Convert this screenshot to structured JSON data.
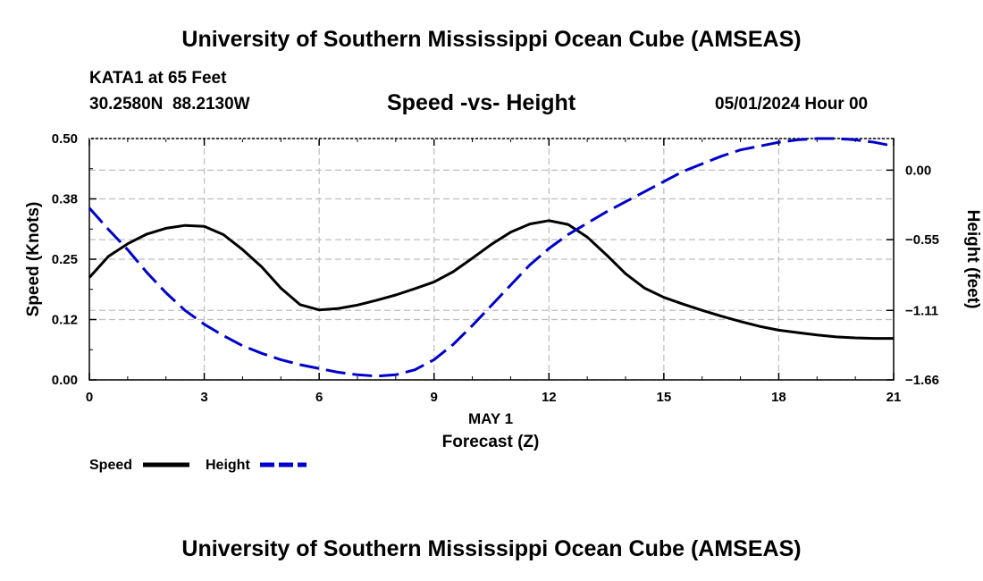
{
  "header": {
    "top_title": "University of Southern Mississippi Ocean Cube (AMSEAS)",
    "station": "KATA1 at 65 Feet",
    "coords": "30.2580N  88.2130W",
    "subtitle": "Speed -vs- Height",
    "datetime": "05/01/2024 Hour 00",
    "bottom_title": "University of Southern Mississippi Ocean Cube (AMSEAS)"
  },
  "chart_data": {
    "type": "line",
    "title": "Speed -vs- Height",
    "xlabel": "Forecast (Z)",
    "xlabel_date": "MAY 1",
    "ylabel_left": "Speed (Knots)",
    "ylabel_right": "Height (feet)",
    "xlim": [
      0,
      21
    ],
    "x_ticks": [
      0,
      3,
      6,
      9,
      12,
      15,
      18,
      21
    ],
    "x_tick_labels": [
      "0",
      "3",
      "6",
      "9",
      "12",
      "15",
      "18",
      "21"
    ],
    "ylim_left": [
      0,
      0.5
    ],
    "y_left_ticks": [
      0,
      0.125,
      0.25,
      0.375,
      0.5
    ],
    "y_left_tick_labels": [
      "0.00",
      "0.12",
      "0.25",
      "0.38",
      "0.50"
    ],
    "ylim_right": [
      -1.66,
      0.25
    ],
    "y_right_ticks": [
      -1.66,
      -1.11,
      -0.55,
      0.0
    ],
    "y_right_tick_labels": [
      "−1.66",
      "−1.11",
      "−0.55",
      "0.00"
    ],
    "grid": true,
    "series": [
      {
        "name": "Speed",
        "axis": "left",
        "color": "#000000",
        "style": "solid",
        "x": [
          0,
          0.5,
          1,
          1.5,
          2,
          2.5,
          3,
          3.5,
          4,
          4.5,
          5,
          5.5,
          6,
          6.5,
          7,
          7.5,
          8,
          8.5,
          9,
          9.5,
          10,
          10.5,
          11,
          11.5,
          12,
          12.5,
          13,
          13.5,
          14,
          14.5,
          15,
          15.5,
          16,
          16.5,
          17,
          17.5,
          18,
          18.5,
          19,
          19.5,
          20,
          20.5,
          21
        ],
        "values": [
          0.212,
          0.256,
          0.282,
          0.302,
          0.314,
          0.32,
          0.318,
          0.301,
          0.27,
          0.234,
          0.19,
          0.156,
          0.145,
          0.148,
          0.155,
          0.165,
          0.176,
          0.189,
          0.203,
          0.224,
          0.252,
          0.281,
          0.306,
          0.323,
          0.33,
          0.322,
          0.296,
          0.259,
          0.22,
          0.19,
          0.171,
          0.157,
          0.144,
          0.132,
          0.121,
          0.111,
          0.103,
          0.098,
          0.093,
          0.089,
          0.087,
          0.086,
          0.086
        ]
      },
      {
        "name": "Height",
        "axis": "right",
        "color": "#0000cc",
        "style": "dashed",
        "x": [
          0,
          0.5,
          1,
          1.5,
          2,
          2.5,
          3,
          3.5,
          4,
          4.5,
          5,
          5.5,
          6,
          6.5,
          7,
          7.5,
          8,
          8.5,
          9,
          9.5,
          10,
          10.5,
          11,
          11.5,
          12,
          12.5,
          13,
          13.5,
          14,
          14.5,
          15,
          15.5,
          16,
          16.5,
          17,
          17.5,
          18,
          18.5,
          19,
          19.5,
          20,
          20.5,
          21
        ],
        "values": [
          -0.3,
          -0.47,
          -0.63,
          -0.81,
          -0.97,
          -1.11,
          -1.22,
          -1.31,
          -1.39,
          -1.45,
          -1.5,
          -1.54,
          -1.57,
          -1.6,
          -1.62,
          -1.63,
          -1.62,
          -1.58,
          -1.5,
          -1.38,
          -1.23,
          -1.07,
          -0.91,
          -0.75,
          -0.62,
          -0.51,
          -0.42,
          -0.33,
          -0.25,
          -0.17,
          -0.09,
          -0.01,
          0.05,
          0.11,
          0.16,
          0.19,
          0.22,
          0.24,
          0.25,
          0.25,
          0.24,
          0.22,
          0.19
        ]
      }
    ]
  }
}
